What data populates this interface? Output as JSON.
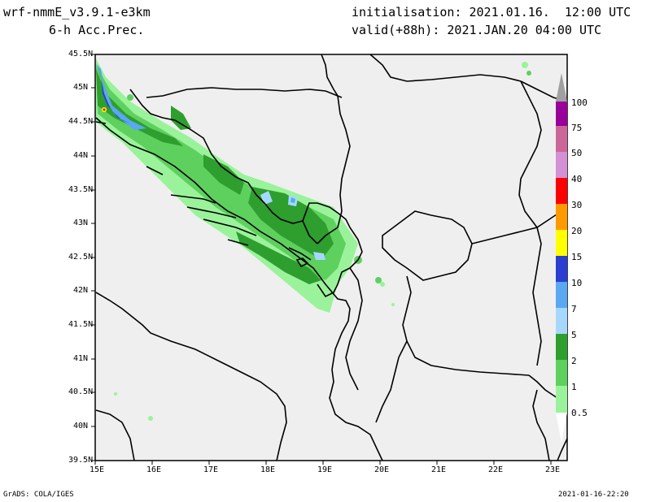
{
  "header": {
    "model": "wrf-nmmE_v3.9.1-e3km",
    "field": "6-h Acc.Prec.",
    "init": "initialisation: 2021.01.16.  12:00 UTC",
    "valid": "valid(+88h): 2021.JAN.20 04:00 UTC"
  },
  "footer": {
    "credit": "GrADS: COLA/IGES",
    "timestamp": "2021-01-16-22:20"
  },
  "axes": {
    "lat_labels": [
      "45.5N",
      "45N",
      "44.5N",
      "44N",
      "43.5N",
      "43N",
      "42.5N",
      "42N",
      "41.5N",
      "41N",
      "40.5N",
      "40N",
      "39.5N"
    ],
    "lon_labels": [
      "15E",
      "16E",
      "17E",
      "18E",
      "19E",
      "20E",
      "21E",
      "22E",
      "23E"
    ]
  },
  "legend": {
    "bins": [
      {
        "label": "0.5",
        "color": "#9af39a"
      },
      {
        "label": "1",
        "color": "#5ed05e"
      },
      {
        "label": "2",
        "color": "#2e9e2e"
      },
      {
        "label": "5",
        "color": "#a6d8ff"
      },
      {
        "label": "7",
        "color": "#5aa7f2"
      },
      {
        "label": "10",
        "color": "#2a3fd0"
      },
      {
        "label": "15",
        "color": "#ffff00"
      },
      {
        "label": "20",
        "color": "#ff9900"
      },
      {
        "label": "30",
        "color": "#ff0000"
      },
      {
        "label": "40",
        "color": "#d490d4"
      },
      {
        "label": "50",
        "color": "#cc6699"
      },
      {
        "label": "75",
        "color": "#990099"
      },
      {
        "label": "100",
        "color": "#a0a0a0"
      }
    ]
  },
  "colors": {
    "map_background": "#efefef",
    "border": "#000000"
  }
}
